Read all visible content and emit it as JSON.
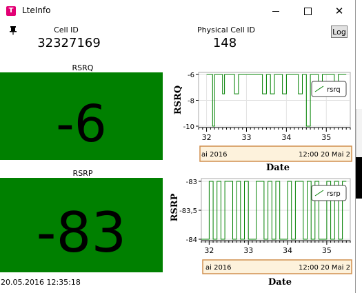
{
  "window": {
    "title": "LteInfo",
    "icon": "telekom-t-icon",
    "app_icon_letter": "T"
  },
  "header": {
    "cell_id_label": "Cell ID",
    "cell_id_value": "32327169",
    "pci_label": "Physical Cell ID",
    "pci_value": "148",
    "log_button": "Log"
  },
  "rsrq": {
    "label": "RSRQ",
    "value": "-6",
    "color": "#008000",
    "chart": {
      "ylabel": "RSRQ",
      "xlabel": "Date",
      "legend": "rsrq",
      "yticks": [
        "-6",
        "-8",
        "-10"
      ],
      "xticks": [
        "32",
        "33",
        "34",
        "35"
      ],
      "range_left": "ai 2016",
      "range_right": "12:00 20 Mai 2"
    }
  },
  "rsrp": {
    "label": "RSRP",
    "value": "-83",
    "color": "#008000",
    "chart": {
      "ylabel": "RSRP",
      "xlabel": "Date",
      "legend": "rsrp",
      "yticks": [
        "-83",
        "-83,5",
        "-84"
      ],
      "xticks": [
        "32",
        "33",
        "34",
        "35"
      ],
      "range_left": "ai 2016",
      "range_right": "12:00 20 Mai 2"
    }
  },
  "footer": {
    "timestamp": "20.05.2016 12:35:18"
  },
  "chart_data": [
    {
      "type": "line",
      "ylabel": "RSRQ",
      "xlabel": "Date",
      "ylim": [
        -10,
        -6
      ],
      "series": [
        {
          "name": "rsrq",
          "x": [
            32.0,
            32.1,
            32.15,
            32.2,
            32.3,
            32.4,
            32.45,
            32.5,
            32.6,
            32.7,
            32.8,
            32.9,
            33.0,
            33.1,
            33.2,
            33.3,
            33.4,
            33.5,
            33.6,
            33.7,
            33.8,
            33.9,
            34.0,
            34.1,
            34.2,
            34.3,
            34.4,
            34.5,
            34.6,
            34.7,
            34.8,
            34.9,
            35.0,
            35.1,
            35.2,
            35.3,
            35.4,
            35.5
          ],
          "values": [
            -6,
            -6,
            -10,
            -6,
            -6,
            -7.5,
            -6,
            -6,
            -6,
            -7.5,
            -6,
            -6,
            -6,
            -6,
            -6,
            -6,
            -7.5,
            -6,
            -7.5,
            -6,
            -6,
            -7.5,
            -6,
            -6,
            -6,
            -7.5,
            -6,
            -10,
            -6,
            -6,
            -7.5,
            -6,
            -6,
            -6,
            -7.5,
            -6,
            -6,
            -6
          ]
        }
      ]
    },
    {
      "type": "line",
      "ylabel": "RSRP",
      "xlabel": "Date",
      "ylim": [
        -84,
        -83
      ],
      "series": [
        {
          "name": "rsrp",
          "x": [
            31.8,
            31.9,
            32.0,
            32.1,
            32.2,
            32.3,
            32.4,
            32.5,
            32.6,
            32.7,
            32.8,
            32.9,
            33.0,
            33.1,
            33.2,
            33.3,
            33.4,
            33.5,
            33.6,
            33.7,
            33.8,
            33.9,
            34.0,
            34.1,
            34.2,
            34.3,
            34.4,
            34.5,
            34.6,
            34.7,
            34.8,
            34.9,
            35.0,
            35.1,
            35.2,
            35.3,
            35.4,
            35.5
          ],
          "values": [
            -84,
            -84,
            -83,
            -84,
            -83,
            -84,
            -83,
            -83,
            -84,
            -83,
            -84,
            -83,
            -84,
            -84,
            -83,
            -83,
            -84,
            -83,
            -84,
            -83,
            -84,
            -84,
            -83,
            -84,
            -83,
            -83,
            -84,
            -83,
            -84,
            -83,
            -84,
            -84,
            -83,
            -84,
            -83,
            -84,
            -83,
            -83
          ]
        }
      ]
    }
  ]
}
